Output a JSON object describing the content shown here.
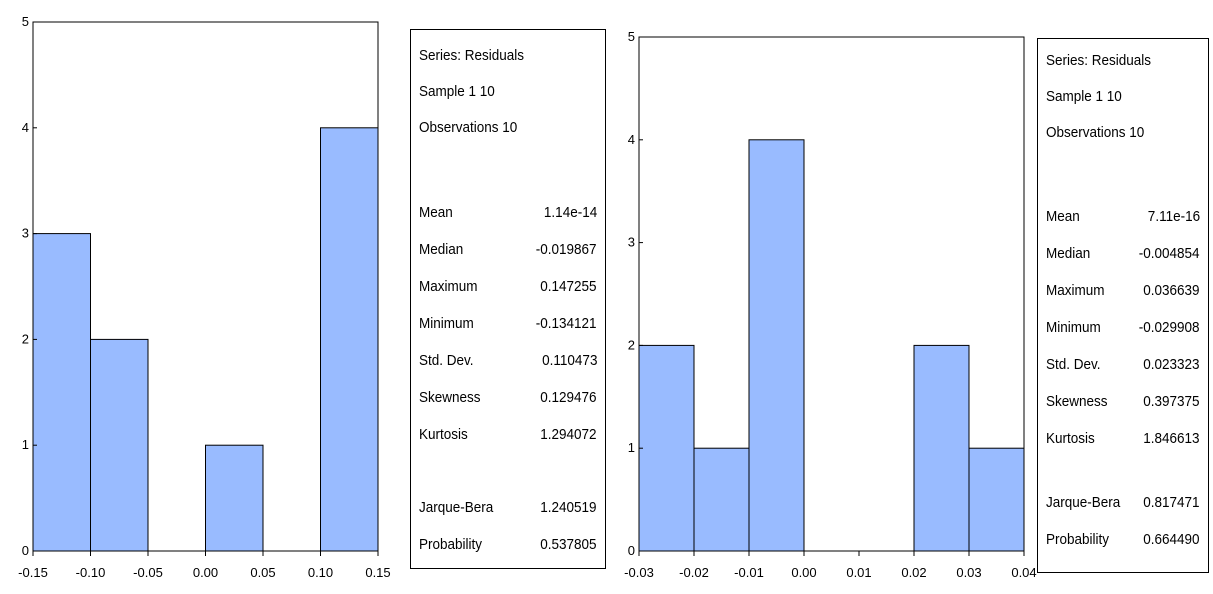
{
  "chart_data": [
    {
      "type": "bar",
      "histogram": true,
      "bin_edges": [
        -0.15,
        -0.1,
        -0.05,
        0.0,
        0.05,
        0.1,
        0.15
      ],
      "values": [
        3,
        2,
        0,
        1,
        0,
        4
      ],
      "xlim": [
        -0.15,
        0.15
      ],
      "ylim": [
        0,
        5
      ],
      "x_ticks": [
        "-0.15",
        "-0.10",
        "-0.05",
        "0.00",
        "0.05",
        "0.10",
        "0.15"
      ],
      "y_ticks": [
        "0",
        "1",
        "2",
        "3",
        "4",
        "5"
      ],
      "bar_color": "#99bbff",
      "stats": {
        "header": [
          "Series: Residuals",
          "Sample 1 10",
          "Observations 10"
        ],
        "rows": [
          {
            "label": "Mean",
            "value": "1.14e-14"
          },
          {
            "label": "Median",
            "value": "-0.019867"
          },
          {
            "label": "Maximum",
            "value": "0.147255"
          },
          {
            "label": "Minimum",
            "value": "-0.134121"
          },
          {
            "label": "Std. Dev.",
            "value": "0.110473"
          },
          {
            "label": "Skewness",
            "value": "0.129476"
          },
          {
            "label": "Kurtosis",
            "value": "1.294072"
          }
        ],
        "tests": [
          {
            "label": "Jarque-Bera",
            "value": "1.240519"
          },
          {
            "label": "Probability",
            "value": "0.537805"
          }
        ]
      }
    },
    {
      "type": "bar",
      "histogram": true,
      "bin_edges": [
        -0.03,
        -0.02,
        -0.01,
        0.0,
        0.01,
        0.02,
        0.03,
        0.04
      ],
      "values": [
        2,
        1,
        4,
        0,
        0,
        2,
        1
      ],
      "xlim": [
        -0.03,
        0.04
      ],
      "ylim": [
        0,
        5
      ],
      "x_ticks": [
        "-0.03",
        "-0.02",
        "-0.01",
        "0.00",
        "0.01",
        "0.02",
        "0.03",
        "0.04"
      ],
      "y_ticks": [
        "0",
        "1",
        "2",
        "3",
        "4",
        "5"
      ],
      "bar_color": "#99bbff",
      "stats": {
        "header": [
          "Series: Residuals",
          "Sample 1 10",
          "Observations 10"
        ],
        "rows": [
          {
            "label": "Mean",
            "value": "7.11e-16"
          },
          {
            "label": "Median",
            "value": "-0.004854"
          },
          {
            "label": "Maximum",
            "value": "0.036639"
          },
          {
            "label": "Minimum",
            "value": "-0.029908"
          },
          {
            "label": "Std. Dev.",
            "value": "0.023323"
          },
          {
            "label": "Skewness",
            "value": "0.397375"
          },
          {
            "label": "Kurtosis",
            "value": "1.846613"
          }
        ],
        "tests": [
          {
            "label": "Jarque-Bera",
            "value": "0.817471"
          },
          {
            "label": "Probability",
            "value": "0.664490"
          }
        ]
      }
    }
  ]
}
